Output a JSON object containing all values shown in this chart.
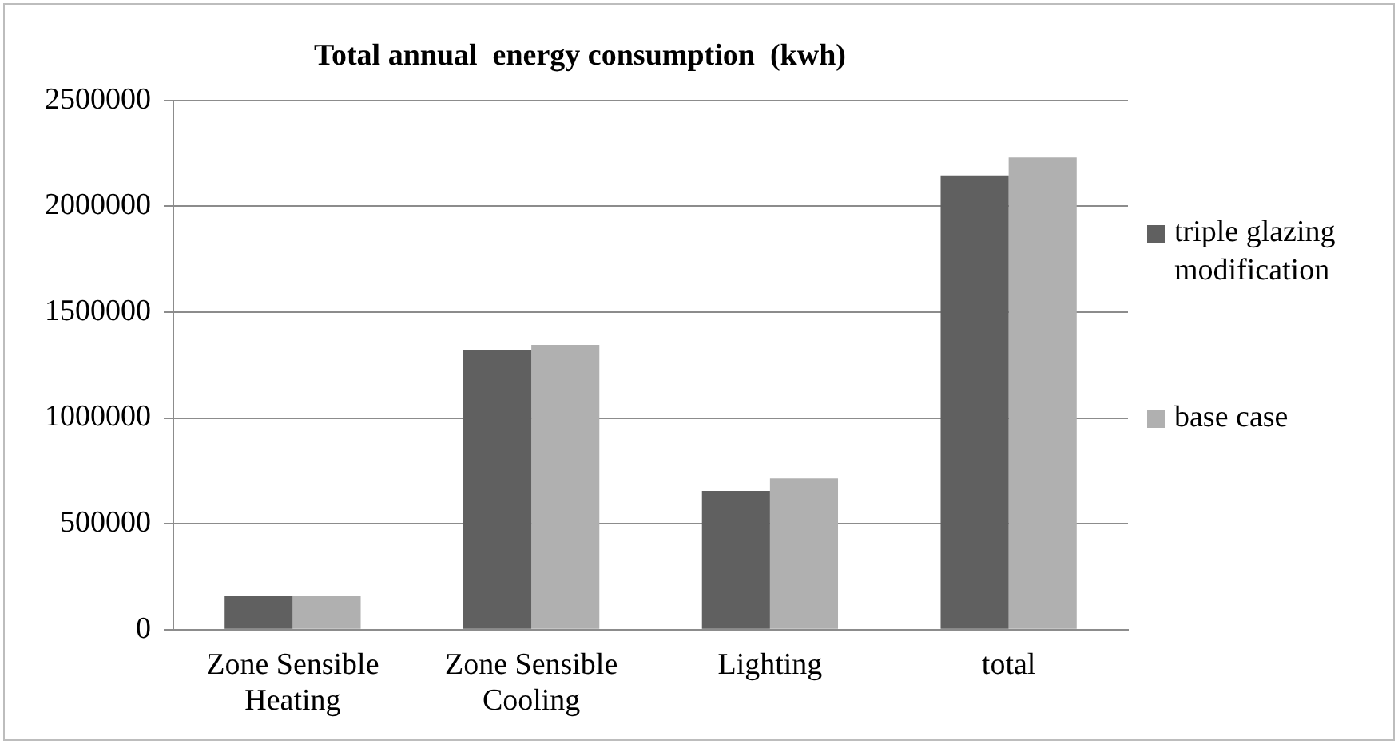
{
  "chart_data": {
    "type": "bar",
    "title": "Total annual  energy consumption  (kwh)",
    "categories": [
      "Zone Sensible Heating",
      "Zone Sensible Cooling",
      "Lighting",
      "total"
    ],
    "series": [
      {
        "name": "triple glazing modification",
        "color": "#606060",
        "values": [
          160000,
          1320000,
          655000,
          2145000
        ]
      },
      {
        "name": "base case",
        "color": "#b0b0b0",
        "values": [
          160000,
          1345000,
          715000,
          2230000
        ]
      }
    ],
    "ylim": [
      0,
      2500000
    ],
    "yticks": [
      0,
      500000,
      1000000,
      1500000,
      2000000,
      2500000
    ],
    "grid": "y",
    "legend": "right"
  }
}
